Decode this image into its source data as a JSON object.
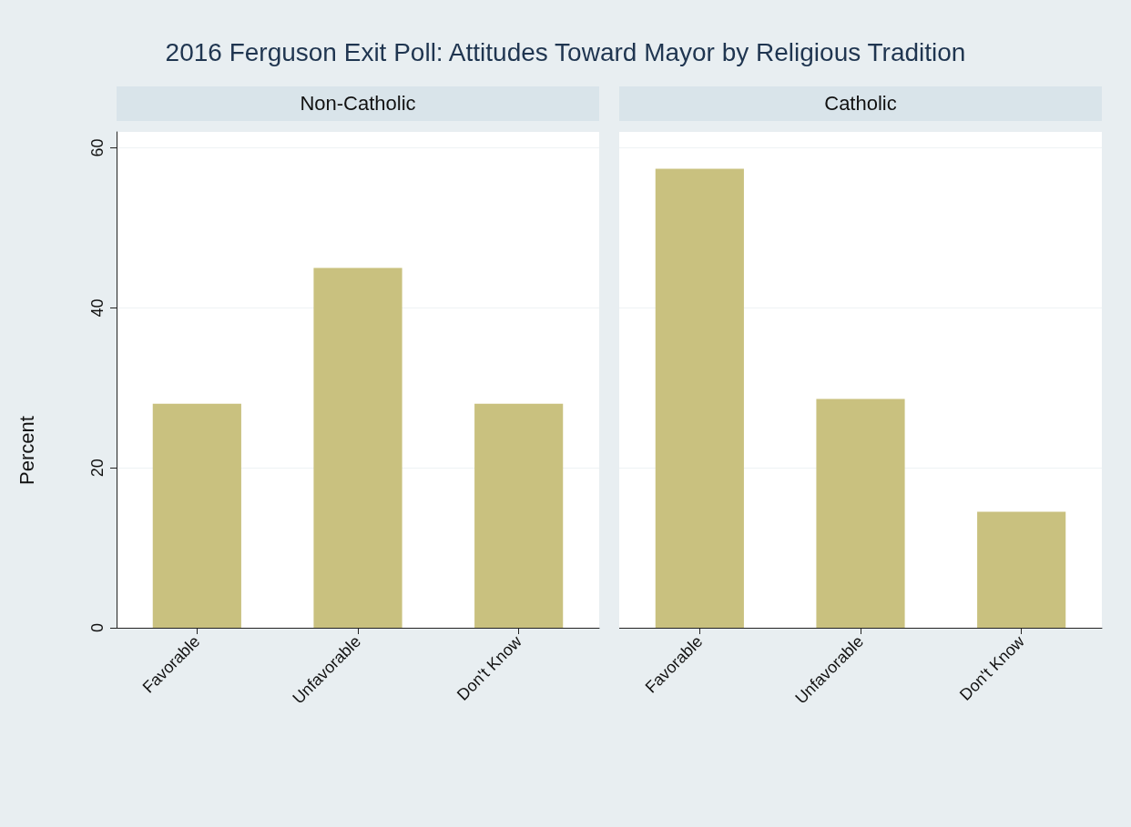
{
  "chart_data": [
    {
      "type": "bar",
      "title": "2016 Ferguson Exit Poll: Attitudes Toward Mayor by Religious Tradition",
      "subtitle": "Non-Catholic",
      "ylabel": "Percent",
      "categories": [
        "Favorable",
        "Unfavorable",
        "Don't Know"
      ],
      "values": [
        28,
        45,
        28
      ],
      "color": "#c9c17f",
      "ylim": [
        0,
        62
      ],
      "yticks": [
        0,
        20,
        40,
        60
      ],
      "grid": "y"
    },
    {
      "type": "bar",
      "subtitle": "Catholic",
      "categories": [
        "Favorable",
        "Unfavorable",
        "Don't Know"
      ],
      "values": [
        57.4,
        28.6,
        14.5
      ],
      "color": "#c9c17f",
      "ylim": [
        0,
        62
      ],
      "yticks": [
        0,
        20,
        40,
        60
      ],
      "grid": "y",
      "tick_labels": "x"
    }
  ]
}
